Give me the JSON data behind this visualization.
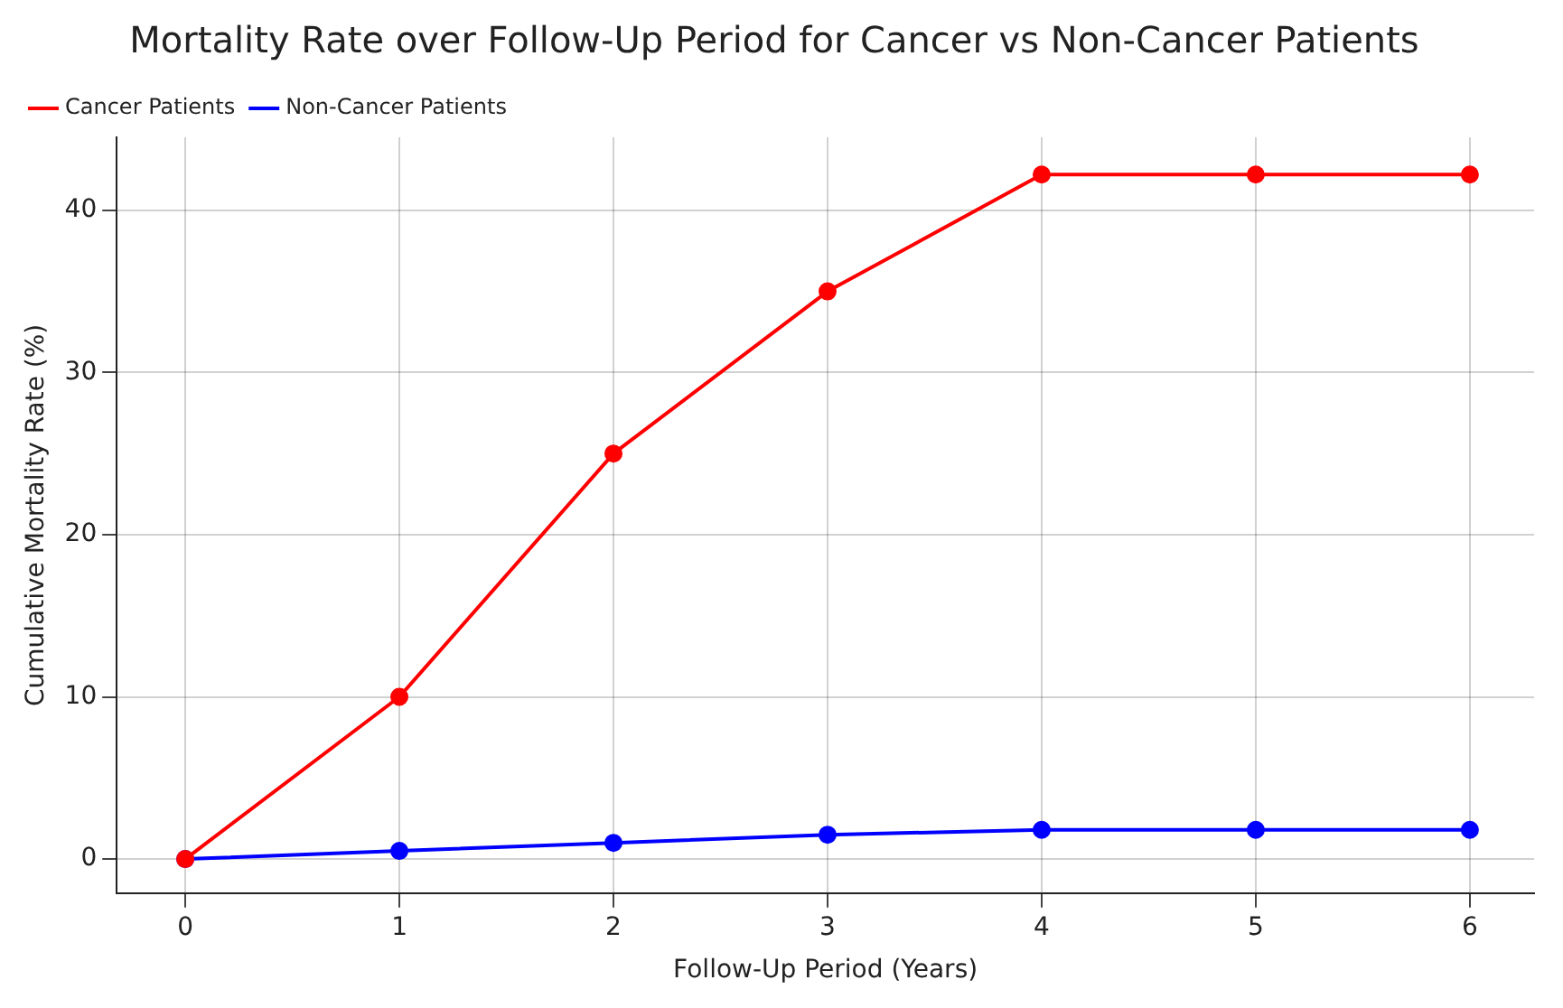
{
  "chart_data": {
    "type": "line",
    "title": "Mortality Rate over Follow-Up Period for Cancer vs Non-Cancer Patients",
    "xlabel": "Follow-Up Period (Years)",
    "ylabel": "Cumulative Mortality Rate (%)",
    "x": [
      0,
      1,
      2,
      3,
      4,
      5,
      6
    ],
    "series": [
      {
        "name": "Cancer Patients",
        "color": "#ff0000",
        "values": [
          0,
          10,
          25,
          35,
          42.2,
          42.2,
          42.2
        ]
      },
      {
        "name": "Non-Cancer Patients",
        "color": "#0000ff",
        "values": [
          0,
          0.5,
          1,
          1.5,
          1.8,
          1.8,
          1.8
        ]
      }
    ],
    "xlim": [
      -0.32,
      6.3
    ],
    "xticks": [
      0,
      1,
      2,
      3,
      4,
      5,
      6
    ],
    "ylim": [
      -2.1,
      44.5
    ],
    "yticks": [
      0,
      10,
      20,
      30,
      40
    ],
    "grid": true,
    "legend": "top left",
    "marker": "circle",
    "line_style": "solid"
  }
}
